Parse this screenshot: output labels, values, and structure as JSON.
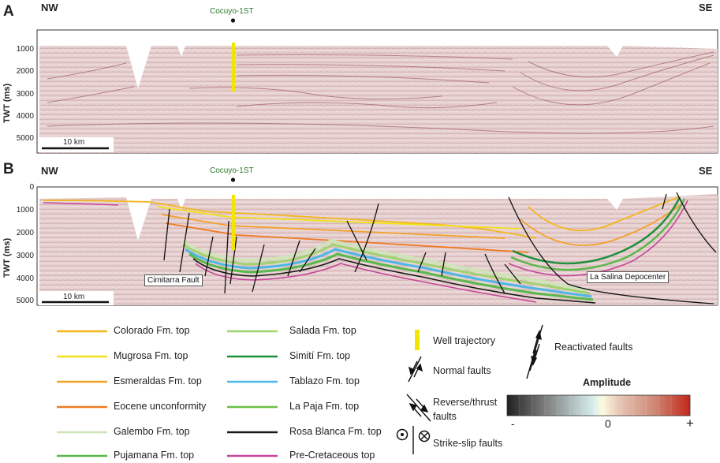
{
  "panel_a": {
    "letter": "A",
    "left_dir": "NW",
    "right_dir": "SE",
    "well_name": "Cocuyo-1ST",
    "y_axis_label": "TWT (ms)",
    "y_ticks": [
      "1000",
      "2000",
      "3000",
      "4000",
      "5000"
    ],
    "scale_bar": "10 km"
  },
  "panel_b": {
    "letter": "B",
    "left_dir": "NW",
    "right_dir": "SE",
    "well_name": "Cocuyo-1ST",
    "y_axis_label": "TWT (ms)",
    "y_ticks": [
      "0",
      "1000",
      "2000",
      "3000",
      "4000",
      "5000"
    ],
    "scale_bar": "10 km",
    "callouts": {
      "fault": "Cimitarra Fault",
      "depocenter": "La Salina Depocenter"
    }
  },
  "legend": {
    "horizons": [
      {
        "label": "Colorado Fm. top",
        "color": "#f4b71c"
      },
      {
        "label": "Mugrosa Fm. top",
        "color": "#f2e11a"
      },
      {
        "label": "Esmeraldas Fm. top",
        "color": "#f3a22a"
      },
      {
        "label": "Eocene unconformity",
        "color": "#ee7a22"
      },
      {
        "label": "Galembo Fm. top",
        "color": "#cfe3b8"
      },
      {
        "label": "Pujamana Fm. top",
        "color": "#5ab84c"
      },
      {
        "label": "Salada Fm. top",
        "color": "#9fd46e"
      },
      {
        "label": "Simití Fm. top",
        "color": "#1f8f3c"
      },
      {
        "label": "Tablazo Fm. top",
        "color": "#4fb7e6"
      },
      {
        "label": "La Paja Fm. top",
        "color": "#6cbf45"
      },
      {
        "label": "Rosa Blanca Fm. top",
        "color": "#1a1a1a"
      },
      {
        "label": "Pre-Cretaceous top",
        "color": "#c6479a"
      }
    ],
    "symbols": {
      "well": "Well trajectory",
      "normal": "Normal faults",
      "reverse_1": "Reverse/thrust",
      "reverse_2": "faults",
      "strike_slip": "Strike-slip faults",
      "reactivated": "Reactivated faults"
    },
    "amplitude": {
      "title": "Amplitude",
      "min_label": "-",
      "mid_label": "0",
      "max_label": "+"
    }
  },
  "colors": {
    "well": "#f2e600",
    "seismic_bg": "#e4cccc",
    "well_name": "#2a7a2a"
  }
}
